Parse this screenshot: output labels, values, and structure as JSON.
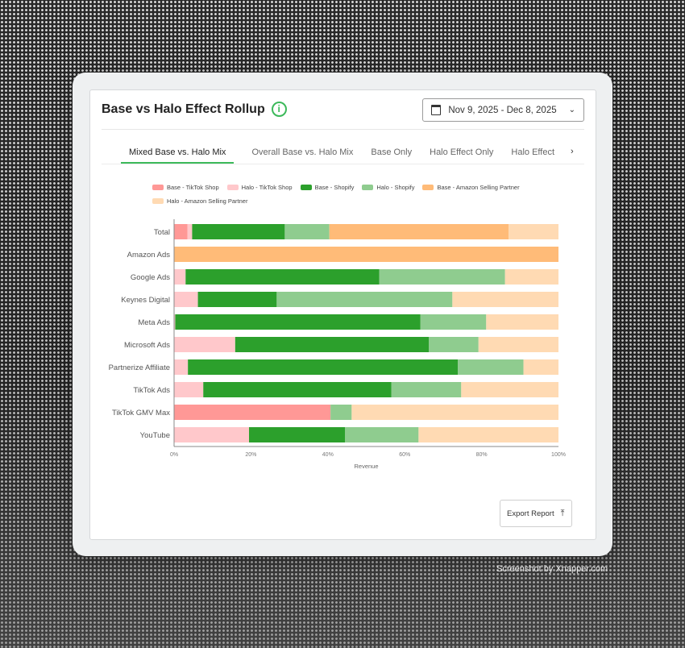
{
  "header": {
    "title": "Base vs Halo Effect Rollup",
    "info_icon": "info-circle-icon",
    "date_range": "Nov 9, 2025 - Dec 8, 2025"
  },
  "tabs": [
    {
      "label": "Mixed Base vs. Halo Mix",
      "active": true
    },
    {
      "label": "Overall Base vs. Halo Mix",
      "active": false
    },
    {
      "label": "Base Only",
      "active": false
    },
    {
      "label": "Halo Effect Only",
      "active": false
    },
    {
      "label": "Halo Effect Breakdown",
      "active": false
    }
  ],
  "export_label": "Export Report",
  "watermark": "Screenshot by Xnapper.com",
  "chart_data": {
    "type": "bar",
    "orientation": "horizontal",
    "stacked": "percent",
    "xlabel": "Revenue",
    "xlim": [
      0,
      100
    ],
    "x_ticks": [
      "0%",
      "20%",
      "40%",
      "60%",
      "80%",
      "100%"
    ],
    "legend_position": "top",
    "grid": false,
    "categories": [
      "Total",
      "Amazon Ads",
      "Google Ads",
      "Keynes Digital",
      "Meta Ads",
      "Microsoft Ads",
      "Partnerize Affiliate",
      "TikTok Ads",
      "TikTok GMV Max",
      "YouTube"
    ],
    "series": [
      {
        "name": "Base - TikTok Shop",
        "color": "#ff9896",
        "values": [
          3.5,
          0,
          0,
          0,
          0,
          0,
          0,
          0,
          40.7,
          0
        ]
      },
      {
        "name": "Halo - TikTok Shop",
        "color": "#ffc8cb",
        "values": [
          1.2,
          0,
          3.0,
          6.2,
          0.3,
          15.9,
          3.6,
          7.6,
          0,
          19.5
        ]
      },
      {
        "name": "Base - Shopify",
        "color": "#2ca02c",
        "values": [
          24.1,
          0,
          50.4,
          20.5,
          63.8,
          50.4,
          70.2,
          48.9,
          0,
          25.0
        ]
      },
      {
        "name": "Halo - Shopify",
        "color": "#8fcc8f",
        "values": [
          11.6,
          0,
          32.7,
          45.7,
          17.1,
          12.9,
          17.1,
          18.2,
          5.5,
          19.1
        ]
      },
      {
        "name": "Base - Amazon Selling Partner",
        "color": "#ffbb78",
        "values": [
          46.6,
          100,
          0,
          0,
          0,
          0,
          0,
          0,
          0,
          0
        ]
      },
      {
        "name": "Halo - Amazon Selling Partner",
        "color": "#ffdab3",
        "values": [
          13.0,
          0,
          13.9,
          27.6,
          18.8,
          20.8,
          9.1,
          25.3,
          53.8,
          36.4
        ]
      }
    ]
  }
}
